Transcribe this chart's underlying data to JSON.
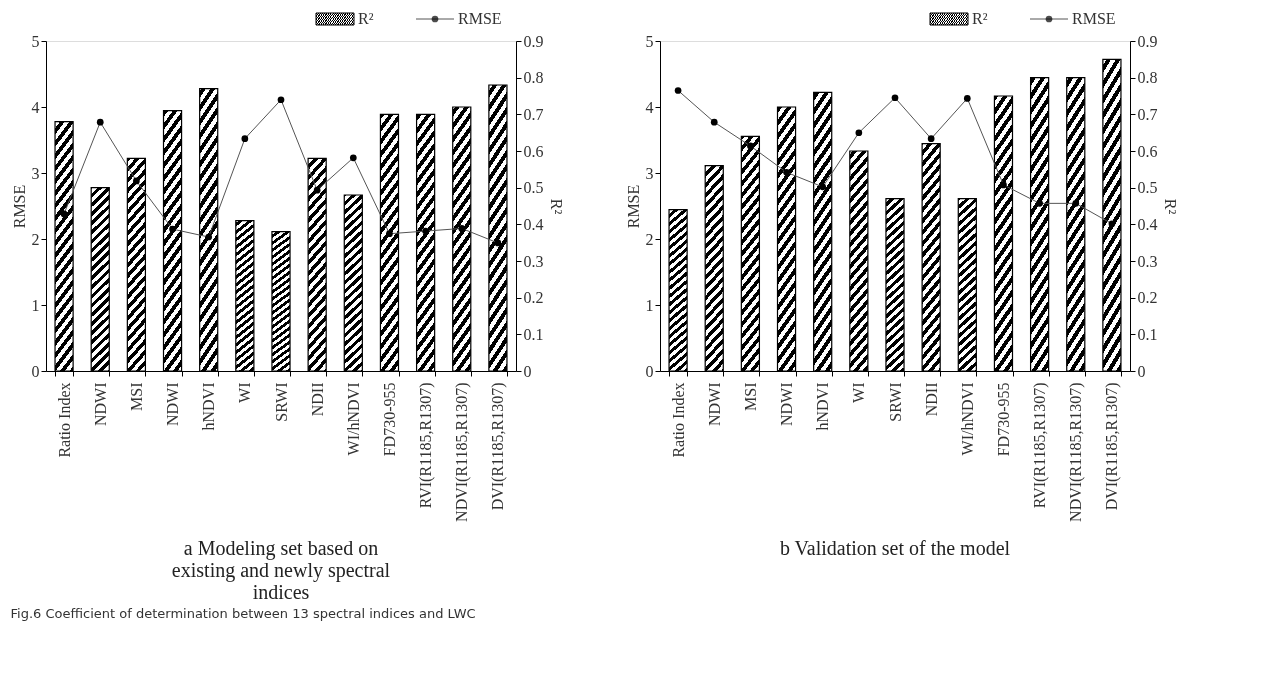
{
  "chart_data": [
    {
      "type": "bar",
      "title": "a  Modeling set based on existing and newly spectral indices",
      "ylabel": "RMSE",
      "y2label": "R²",
      "categories": [
        "Ratio Index",
        "NDWI",
        "MSI",
        "NDWI",
        "hNDVI",
        "WI",
        "SRWI",
        "NDII",
        "WI/hNDVI",
        "FD730-955",
        "RVI(R1185,R1307)",
        "NDVI(R1185,R1307)",
        "DVI(R1185,R1307)"
      ],
      "series": [
        {
          "name": "R²",
          "axis": "y2",
          "color": "#000000",
          "values": [
            0.68,
            0.5,
            0.58,
            0.71,
            0.77,
            0.41,
            0.38,
            0.58,
            0.48,
            0.7,
            0.7,
            0.72,
            0.78
          ]
        },
        {
          "name": "RMSE",
          "type": "line",
          "color": "#000000",
          "values": [
            2.38,
            3.77,
            2.88,
            2.15,
            2.03,
            3.52,
            4.11,
            2.74,
            3.23,
            2.08,
            2.12,
            2.16,
            1.94
          ]
        }
      ],
      "ylim": [
        0,
        5
      ],
      "yticks": [
        0,
        1,
        2,
        3,
        4,
        5
      ],
      "y2lim": [
        0,
        0.9
      ],
      "y2ticks": [
        0,
        0.1,
        0.2,
        0.3,
        0.4,
        0.5,
        0.6,
        0.7,
        0.8,
        0.9
      ],
      "marker": "circle",
      "legend": "top right",
      "grid": false,
      "annotations": [
        "Fig.6  Coefficient of determination between 13 spectral indices and LWC"
      ]
    },
    {
      "type": "bar",
      "title": "b  Validation set of the model",
      "ylabel": "RMSE",
      "y2label": "R²",
      "categories": [
        "Ratio Index",
        "NDWI",
        "MSI",
        "NDWI",
        "hNDVI",
        "WI",
        "SRWI",
        "NDII",
        "WI/hNDVI",
        "FD730-955",
        "RVI(R1185,R1307)",
        "NDVI(R1185,R1307)",
        "DVI(R1185,R1307)"
      ],
      "series": [
        {
          "name": "R²",
          "axis": "y2",
          "color": "#000000",
          "values": [
            0.44,
            0.56,
            0.64,
            0.72,
            0.76,
            0.6,
            0.47,
            0.62,
            0.47,
            0.75,
            0.8,
            0.8,
            0.85
          ]
        },
        {
          "name": "RMSE",
          "type": "line",
          "color": "#000000",
          "values": [
            4.25,
            3.77,
            3.41,
            3.01,
            2.79,
            3.61,
            4.14,
            3.52,
            4.13,
            2.82,
            2.54,
            2.54,
            2.23
          ]
        }
      ],
      "ylim": [
        0,
        5
      ],
      "yticks": [
        0,
        1,
        2,
        3,
        4,
        5
      ],
      "y2lim": [
        0,
        0.9
      ],
      "y2ticks": [
        0,
        0.1,
        0.2,
        0.3,
        0.4,
        0.5,
        0.6,
        0.7,
        0.8,
        0.9
      ],
      "marker": "circle",
      "legend": "top right",
      "grid": false
    }
  ]
}
